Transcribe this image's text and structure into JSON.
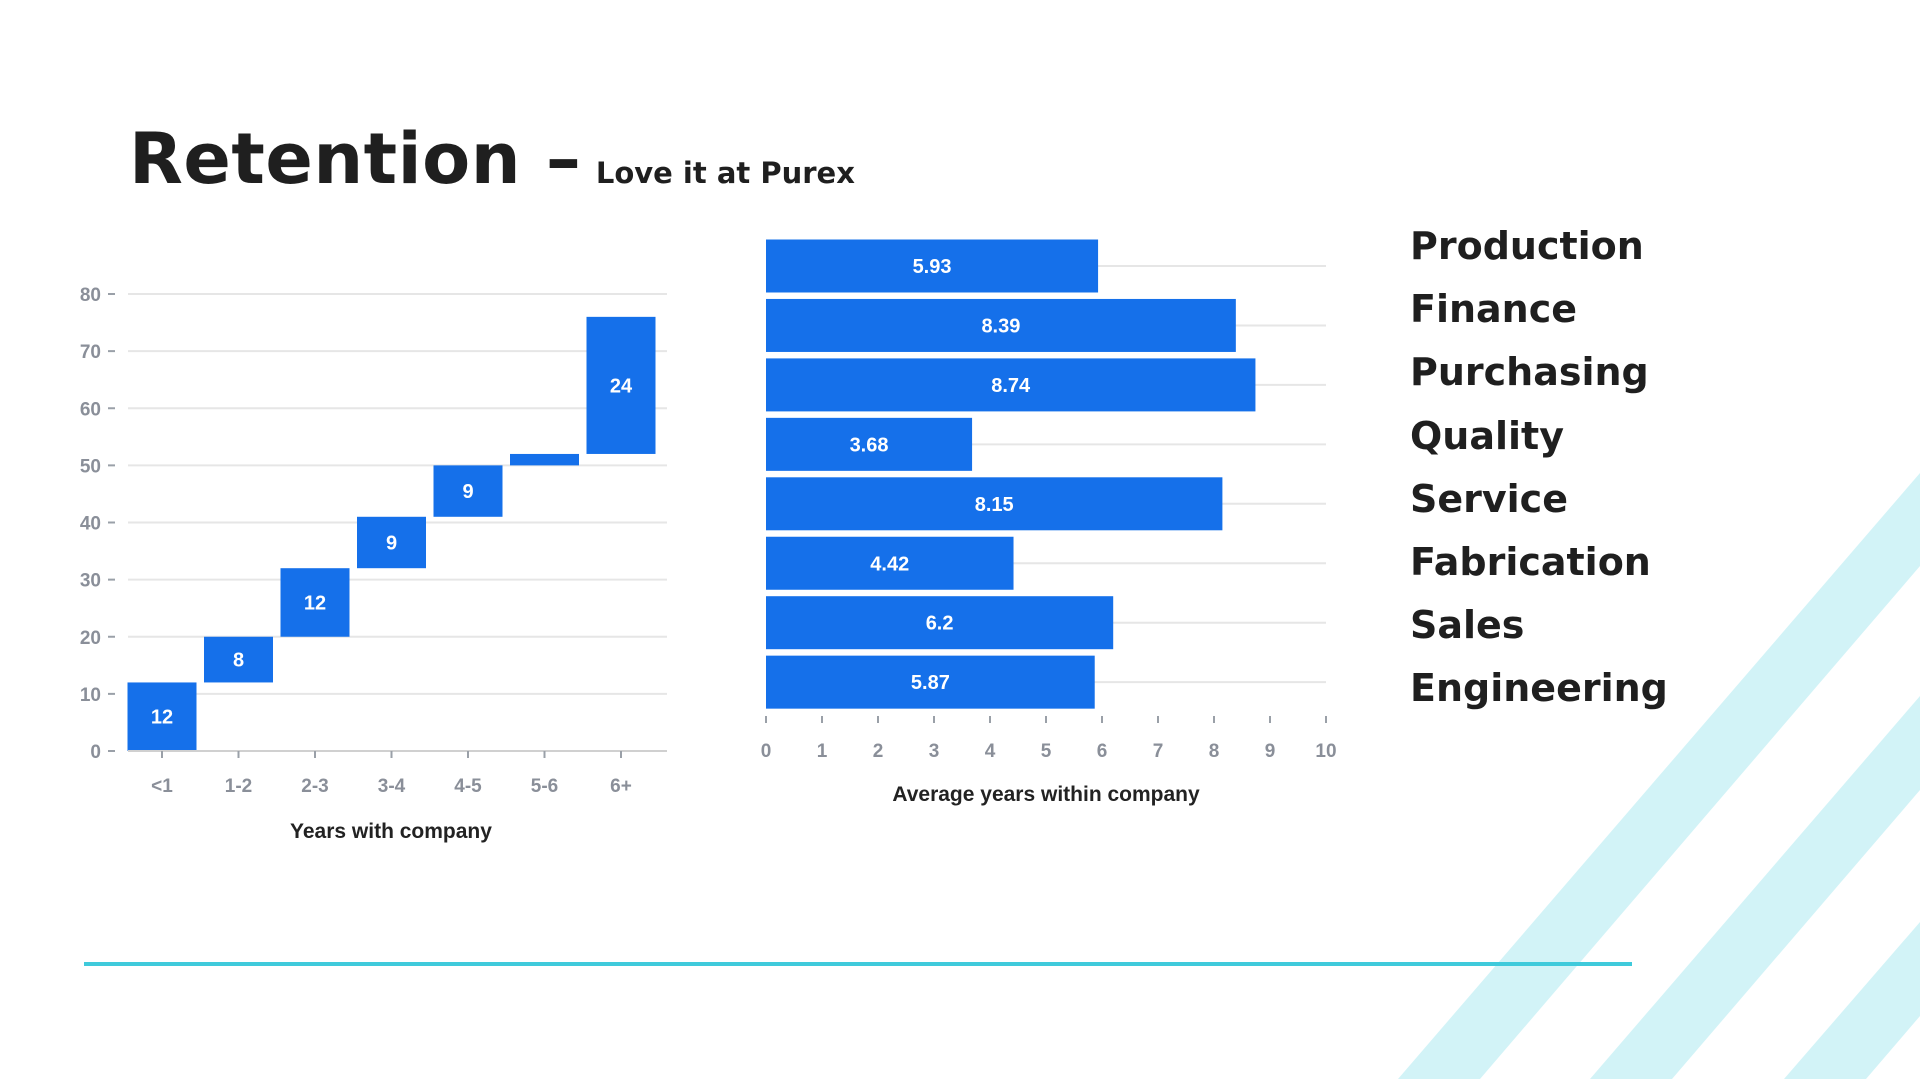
{
  "title": "Retention –",
  "subtitle": "Love it at Purex",
  "colors": {
    "bar": "#1570ea",
    "accent_line": "#3fcadb",
    "stripe": "#d2f3f7",
    "grid": "#e6e6e6"
  },
  "chart_data": [
    {
      "type": "bar",
      "subtype": "waterfall",
      "categories": [
        "<1",
        "1-2",
        "2-3",
        "3-4",
        "4-5",
        "5-6",
        "6+"
      ],
      "values": [
        12,
        8,
        12,
        9,
        9,
        2,
        24
      ],
      "data_labels": [
        "12",
        "8",
        "12",
        "9",
        "9",
        "",
        "24"
      ],
      "xlabel": "Years with company",
      "ylabel": "",
      "ylim": [
        0,
        80
      ],
      "yticks": [
        0,
        10,
        20,
        30,
        40,
        50,
        60,
        70,
        80
      ],
      "grid": true
    },
    {
      "type": "bar",
      "orientation": "horizontal",
      "categories": [
        "Production",
        "Finance",
        "Purchasing",
        "Quality",
        "Service",
        "Fabrication",
        "Sales",
        "Engineering"
      ],
      "values": [
        5.93,
        8.39,
        8.74,
        3.68,
        8.15,
        4.42,
        6.2,
        5.87
      ],
      "data_labels": [
        "5.93",
        "8.39",
        "8.74",
        "3.68",
        "8.15",
        "4.42",
        "6.2",
        "5.87"
      ],
      "xlabel": "Average years within company",
      "xlim": [
        0,
        10
      ],
      "xticks": [
        0,
        1,
        2,
        3,
        4,
        5,
        6,
        7,
        8,
        9,
        10
      ],
      "grid": true
    }
  ]
}
